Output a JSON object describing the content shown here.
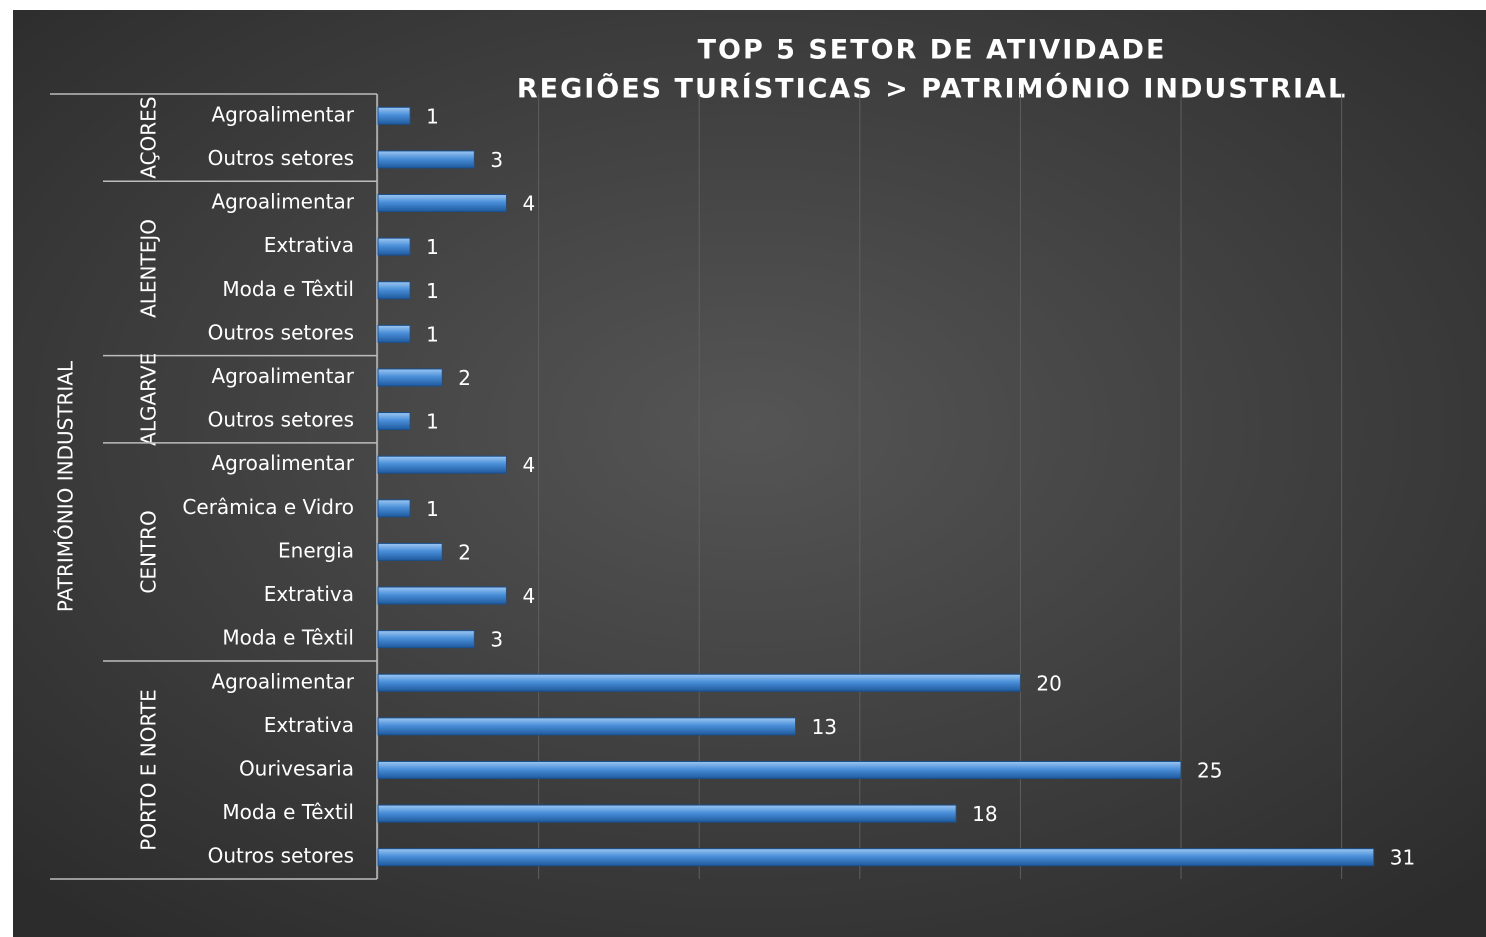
{
  "chart_data": {
    "type": "bar",
    "orientation": "horizontal",
    "title": "TOP 5 SETOR DE ATIVIDADE",
    "subtitle": "REGIÕES TURÍSTICAS > PATRIMÓNIO INDUSTRIAL",
    "outer_group": "PATRIMÓNIO INDUSTRIAL",
    "color": "#4a8fd9",
    "groups": [
      {
        "name": "AÇORES",
        "categories": [
          "Agroalimentar",
          "Outros setores"
        ],
        "values": [
          1,
          3
        ]
      },
      {
        "name": "ALENTEJO",
        "categories": [
          "Agroalimentar",
          "Extrativa",
          "Moda e Têxtil",
          "Outros setores"
        ],
        "values": [
          4,
          1,
          1,
          1
        ]
      },
      {
        "name": "ALGARVE",
        "categories": [
          "Agroalimentar",
          "Outros setores"
        ],
        "values": [
          2,
          1
        ]
      },
      {
        "name": "CENTRO",
        "categories": [
          "Agroalimentar",
          "Cerâmica e Vidro",
          "Energia",
          "Extrativa",
          "Moda e Têxtil"
        ],
        "values": [
          4,
          1,
          2,
          4,
          3
        ]
      },
      {
        "name": "PORTO E NORTE",
        "categories": [
          "Agroalimentar",
          "Extrativa",
          "Ourivesaria",
          "Moda e Têxtil",
          "Outros setores"
        ],
        "values": [
          20,
          13,
          25,
          18,
          31
        ]
      }
    ],
    "xlim": [
      0,
      33
    ],
    "xticks": [
      0,
      5,
      10,
      15,
      20,
      25,
      30
    ],
    "grid": true
  }
}
